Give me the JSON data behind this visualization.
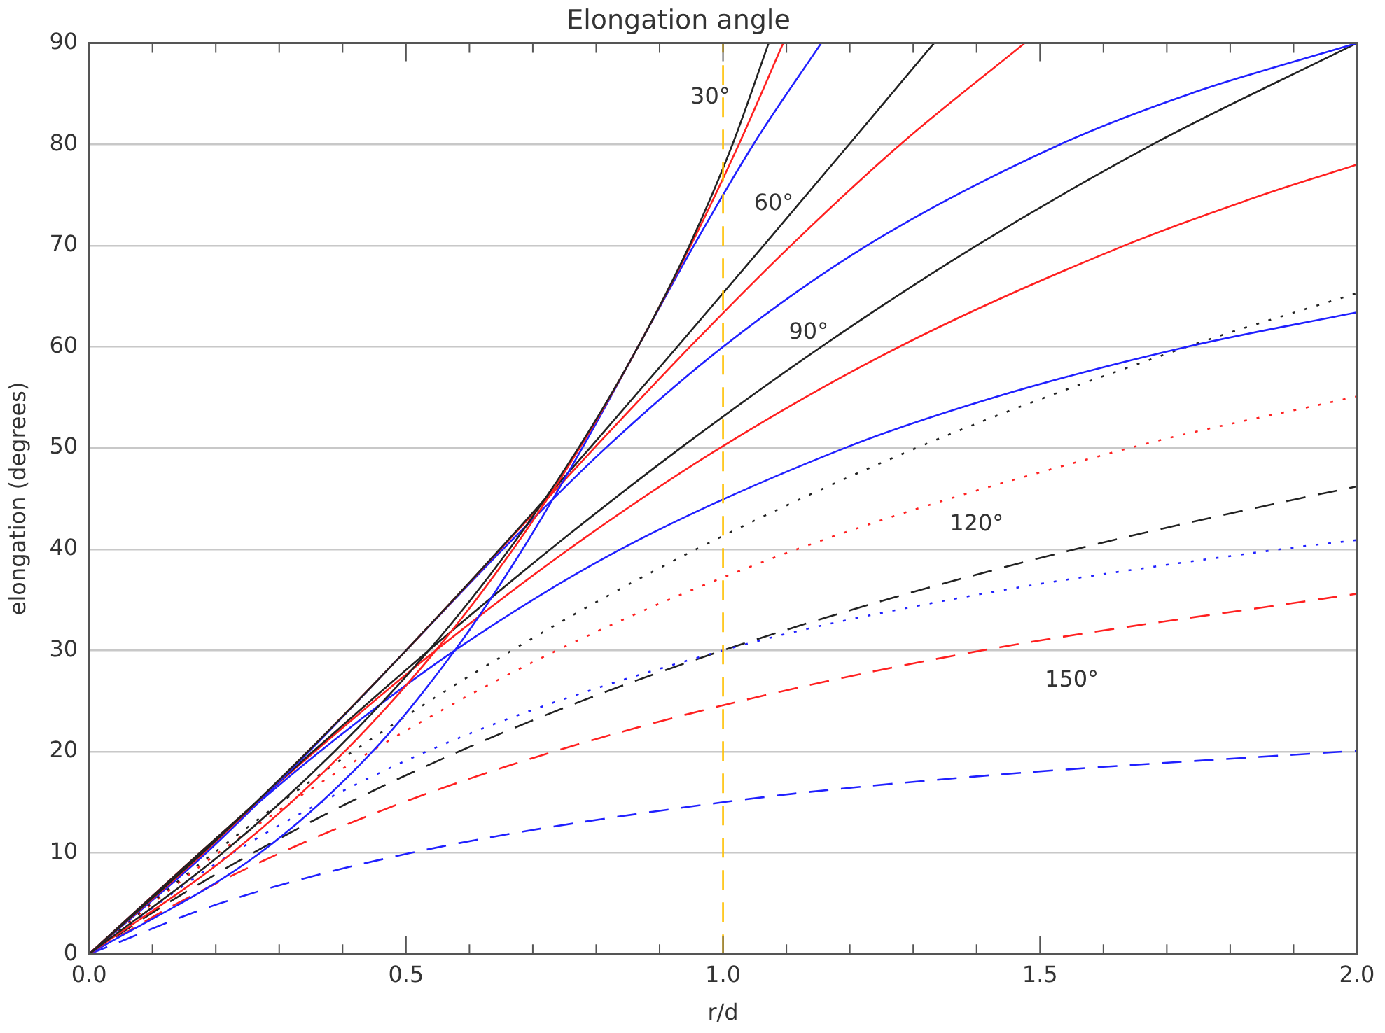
{
  "chart_data": {
    "type": "line",
    "title": "Elongation angle",
    "xlabel": "r/d",
    "ylabel": "elongation (degrees)",
    "xlim": [
      0,
      2
    ],
    "xticks": [
      {
        "value": 0,
        "label": "0.0"
      },
      {
        "value": 0.1,
        "label": null
      },
      {
        "value": 0.2,
        "label": null
      },
      {
        "value": 0.3,
        "label": null
      },
      {
        "value": 0.4,
        "label": null
      },
      {
        "value": 0.5,
        "label": "0.5"
      },
      {
        "value": 0.6,
        "label": null
      },
      {
        "value": 0.7,
        "label": null
      },
      {
        "value": 0.8,
        "label": null
      },
      {
        "value": 0.9,
        "label": null
      },
      {
        "value": 1,
        "label": "1.0"
      },
      {
        "value": 1.1,
        "label": null
      },
      {
        "value": 1.2,
        "label": null
      },
      {
        "value": 1.3,
        "label": null
      },
      {
        "value": 1.4,
        "label": null
      },
      {
        "value": 1.5,
        "label": "1.5"
      },
      {
        "value": 1.6,
        "label": null
      },
      {
        "value": 1.7,
        "label": null
      },
      {
        "value": 1.8,
        "label": null
      },
      {
        "value": 1.9,
        "label": null
      },
      {
        "value": 2,
        "label": "2.0"
      }
    ],
    "ylim": [
      0,
      90
    ],
    "yticks": [
      0,
      10,
      20,
      30,
      40,
      50,
      60,
      70,
      80,
      90
    ],
    "grid": "y",
    "legend": false,
    "marker": "none",
    "series": [
      {
        "color": "#222222",
        "line_style": "solid",
        "x": [
          0,
          0.211,
          0.387,
          0.536,
          0.663,
          0.772,
          0.866,
          0.947,
          1.015,
          1.072
        ],
        "values": [
          0,
          10,
          20,
          30,
          40,
          50,
          60,
          70,
          80,
          90
        ]
      },
      {
        "color": "#ff2020",
        "line_style": "solid",
        "x": [
          0,
          0.226,
          0.403,
          0.547,
          0.669,
          0.774,
          0.866,
          0.949,
          1.025,
          1.095
        ],
        "values": [
          0,
          10,
          20,
          30,
          40,
          50,
          60,
          70,
          80,
          90
        ]
      },
      {
        "color": "#2020ff",
        "line_style": "solid",
        "x": [
          0,
          0.27,
          0.447,
          0.577,
          0.684,
          0.778,
          0.866,
          0.954,
          1.048,
          1.155
        ],
        "values": [
          0,
          10,
          20,
          30,
          40,
          50,
          60,
          70,
          80,
          90
        ]
      },
      {
        "color": "#222222",
        "line_style": "solid",
        "x": [
          0,
          0.179,
          0.345,
          0.5,
          0.648,
          0.79,
          0.928,
          1.064,
          1.199,
          1.333
        ],
        "values": [
          0,
          10,
          20,
          30,
          40,
          50,
          60,
          70,
          80,
          90
        ]
      },
      {
        "color": "#ff2020",
        "line_style": "solid",
        "x": [
          0,
          0.181,
          0.345,
          0.5,
          0.649,
          0.797,
          0.948,
          1.107,
          1.28,
          1.476
        ],
        "values": [
          0,
          10,
          20,
          30,
          40,
          50,
          60,
          70,
          80,
          90
        ]
      },
      {
        "color": "#2020ff",
        "line_style": "solid",
        "x": [
          0,
          0.185,
          0.347,
          0.5,
          0.653,
          0.815,
          1,
          1.227,
          1.532,
          1.737,
          2
        ],
        "values": [
          0,
          10,
          20,
          30,
          40,
          50,
          60,
          70,
          80,
          85,
          90
        ]
      },
      {
        "color": "#222222",
        "line_style": "solid",
        "x": [
          0,
          0.175,
          0.353,
          0.536,
          0.728,
          0.933,
          1.155,
          1.4,
          1.678,
          2
        ],
        "values": [
          0,
          10,
          20,
          30,
          40,
          50,
          60,
          70,
          80,
          90
        ]
      },
      {
        "color": "#ff2020",
        "line_style": "solid",
        "x": [
          0,
          0.175,
          0.356,
          0.547,
          0.757,
          0.995,
          1.278,
          1.633,
          1.851,
          2
        ],
        "values": [
          0,
          10,
          20,
          30,
          40,
          50,
          60,
          70,
          75,
          78
        ]
      },
      {
        "color": "#2020ff",
        "line_style": "solid",
        "x": [
          0,
          0.176,
          0.364,
          0.577,
          0.839,
          1.192,
          1.428,
          1.732,
          2
        ],
        "values": [
          0,
          10,
          20,
          30,
          40,
          50,
          55,
          60,
          63.4
        ]
      },
      {
        "color": "#222222",
        "line_style": "dotted",
        "x": [
          0,
          0.197,
          0.416,
          0.667,
          0.958,
          1.305,
          1.732,
          2
        ],
        "values": [
          0,
          10,
          20,
          30,
          40,
          50,
          60,
          65.3
        ]
      },
      {
        "color": "#ff2020",
        "line_style": "dotted",
        "x": [
          0,
          0.204,
          0.444,
          0.738,
          1.117,
          1.641,
          2
        ],
        "values": [
          0,
          10,
          20,
          30,
          40,
          50,
          55.1
        ]
      },
      {
        "color": "#2020ff",
        "line_style": "dotted",
        "x": [
          0,
          0.227,
          0.532,
          1,
          1.357,
          1.88,
          2
        ],
        "values": [
          0,
          10,
          20,
          30,
          35,
          40,
          40.9
        ]
      },
      {
        "color": "#222222",
        "line_style": "dashed",
        "x": [
          0,
          0.123,
          0.259,
          0.411,
          0.583,
          0.777,
          1,
          1.257,
          1.556,
          1.908,
          2
        ],
        "values": [
          0,
          5,
          10,
          15,
          20,
          25,
          30,
          35,
          40,
          45,
          46.2
        ]
      },
      {
        "color": "#ff2020",
        "line_style": "dashed",
        "x": [
          0,
          0.139,
          0.302,
          0.496,
          0.733,
          1.028,
          1.409,
          2
        ],
        "values": [
          0,
          5,
          10,
          15,
          20,
          25,
          30,
          35.6
        ]
      },
      {
        "color": "#2020ff",
        "line_style": "dashed",
        "x": [
          0,
          0.206,
          0.508,
          1,
          1.39,
          2
        ],
        "values": [
          0,
          5,
          10,
          15,
          17.5,
          20.1
        ]
      }
    ],
    "ref_lines": [
      {
        "axis": "x",
        "value": 1,
        "color": "#ffc000",
        "line_style": "dashed"
      }
    ],
    "annotations": [
      "30°",
      "60°",
      "90°",
      "120°",
      "150°"
    ]
  }
}
